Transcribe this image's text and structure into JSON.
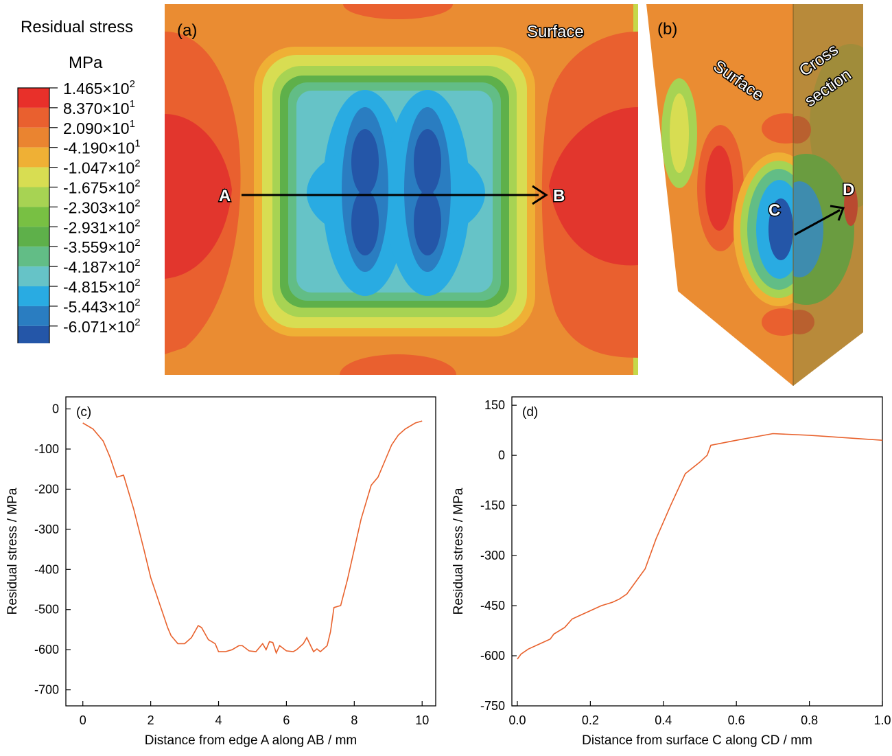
{
  "legend": {
    "title": "Residual stress",
    "unit": "MPa",
    "colors": [
      "#e8302a",
      "#e9602f",
      "#ea8430",
      "#efb035",
      "#d8dd52",
      "#a7d353",
      "#78c043",
      "#5eb04a",
      "#62bd86",
      "#66c3c7",
      "#29abe2",
      "#2a7dc1",
      "#2456a8"
    ],
    "levels": [
      {
        "mant": "1.465×10",
        "exp": "2"
      },
      {
        "mant": "8.370×10",
        "exp": "1"
      },
      {
        "mant": "2.090×10",
        "exp": "1"
      },
      {
        "mant": "-4.190×10",
        "exp": "1"
      },
      {
        "mant": "-1.047×10",
        "exp": "2"
      },
      {
        "mant": "-1.675×10",
        "exp": "2"
      },
      {
        "mant": "-2.303×10",
        "exp": "2"
      },
      {
        "mant": "-2.931×10",
        "exp": "2"
      },
      {
        "mant": "-3.559×10",
        "exp": "2"
      },
      {
        "mant": "-4.187×10",
        "exp": "2"
      },
      {
        "mant": "-4.815×10",
        "exp": "2"
      },
      {
        "mant": "-5.443×10",
        "exp": "2"
      },
      {
        "mant": "-6.071×10",
        "exp": "2"
      }
    ]
  },
  "panel_a": {
    "tag": "(a)",
    "surface_label": "Surface",
    "point_a": "A",
    "point_b": "B"
  },
  "panel_b": {
    "tag": "(b)",
    "surface_label": "Surface",
    "cross_line1": "Cross",
    "cross_line2": "section",
    "point_c": "C",
    "point_d": "D"
  },
  "chart_data": [
    {
      "panel": "(c)",
      "type": "line",
      "xlabel": "Distance from edge A along AB / mm",
      "ylabel": "Residual stress / MPa",
      "xlim": [
        -0.5,
        10.4
      ],
      "ylim": [
        -740,
        30
      ],
      "xticks": [
        0,
        2,
        4,
        6,
        8,
        10
      ],
      "yticks": [
        0,
        -100,
        -200,
        -300,
        -400,
        -500,
        -600,
        -700
      ],
      "line_color": "#e8612c",
      "series": [
        {
          "x": [
            0,
            0.3,
            0.6,
            0.8,
            1.0,
            1.2,
            1.5,
            1.8,
            2.0,
            2.2,
            2.4,
            2.5,
            2.6,
            2.8,
            3.0,
            3.2,
            3.4,
            3.5,
            3.7,
            3.9,
            4.0,
            4.2,
            4.4,
            4.6,
            4.7,
            4.9,
            5.1,
            5.3,
            5.4,
            5.5,
            5.6,
            5.7,
            5.8,
            6.0,
            6.2,
            6.3,
            6.5,
            6.6,
            6.8,
            6.9,
            7.0,
            7.2,
            7.3,
            7.4,
            7.6,
            7.8,
            8.0,
            8.2,
            8.5,
            8.7,
            8.9,
            9.1,
            9.3,
            9.5,
            9.8,
            10.0
          ],
          "y": [
            -35,
            -50,
            -80,
            -120,
            -170,
            -165,
            -250,
            -350,
            -420,
            -470,
            -520,
            -545,
            -565,
            -585,
            -585,
            -570,
            -540,
            -545,
            -575,
            -585,
            -605,
            -605,
            -600,
            -590,
            -590,
            -603,
            -605,
            -585,
            -600,
            -580,
            -582,
            -608,
            -590,
            -603,
            -605,
            -600,
            -585,
            -570,
            -605,
            -598,
            -605,
            -590,
            -555,
            -495,
            -490,
            -425,
            -350,
            -275,
            -190,
            -170,
            -130,
            -90,
            -65,
            -50,
            -35,
            -30
          ]
        }
      ]
    },
    {
      "panel": "(d)",
      "type": "line",
      "xlabel": "Distance from surface C along CD / mm",
      "ylabel": "Residual stress / MPa",
      "xlim": [
        -0.015,
        1.0
      ],
      "ylim": [
        -750,
        175
      ],
      "xticks": [
        0.0,
        0.2,
        0.4,
        0.6,
        0.8,
        1.0
      ],
      "xtick_labels": [
        "0.0",
        "0.2",
        "0.4",
        "0.6",
        "0.8",
        "1.0"
      ],
      "yticks": [
        150,
        0,
        -150,
        -300,
        -450,
        -600,
        -750
      ],
      "line_color": "#e8612c",
      "series": [
        {
          "x": [
            0,
            0.01,
            0.03,
            0.06,
            0.09,
            0.1,
            0.13,
            0.15,
            0.17,
            0.2,
            0.23,
            0.26,
            0.28,
            0.3,
            0.33,
            0.35,
            0.38,
            0.42,
            0.46,
            0.5,
            0.52,
            0.53,
            0.6,
            0.7,
            0.8,
            1.0
          ],
          "y": [
            -610,
            -595,
            -580,
            -565,
            -550,
            -535,
            -515,
            -490,
            -480,
            -465,
            -450,
            -440,
            -430,
            -415,
            -370,
            -340,
            -250,
            -150,
            -55,
            -20,
            0,
            30,
            45,
            65,
            60,
            45
          ]
        }
      ]
    }
  ]
}
